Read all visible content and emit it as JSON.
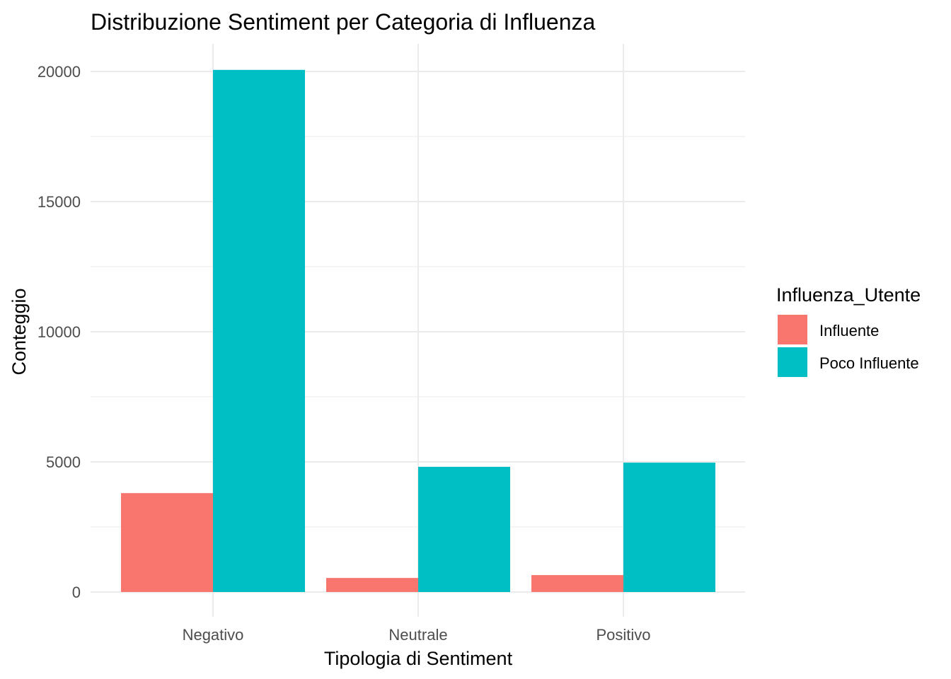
{
  "chart_data": {
    "type": "bar",
    "title": "Distribuzione Sentiment per Categoria di Influenza",
    "xlabel": "Tipologia di Sentiment",
    "ylabel": "Conteggio",
    "categories": [
      "Negativo",
      "Neutrale",
      "Positivo"
    ],
    "series": [
      {
        "name": "Influente",
        "color": "#F8766D",
        "values": [
          3800,
          540,
          650
        ]
      },
      {
        "name": "Poco Influente",
        "color": "#00BFC4",
        "values": [
          20060,
          4810,
          4970
        ]
      }
    ],
    "ylim": [
      0,
      20000
    ],
    "yticks": [
      0,
      5000,
      10000,
      15000,
      20000
    ],
    "ytick_labels": [
      "0",
      "5000",
      "10000",
      "15000",
      "20000"
    ],
    "grid": true,
    "legend": {
      "title": "Influenza_Utente",
      "position": "right"
    }
  }
}
